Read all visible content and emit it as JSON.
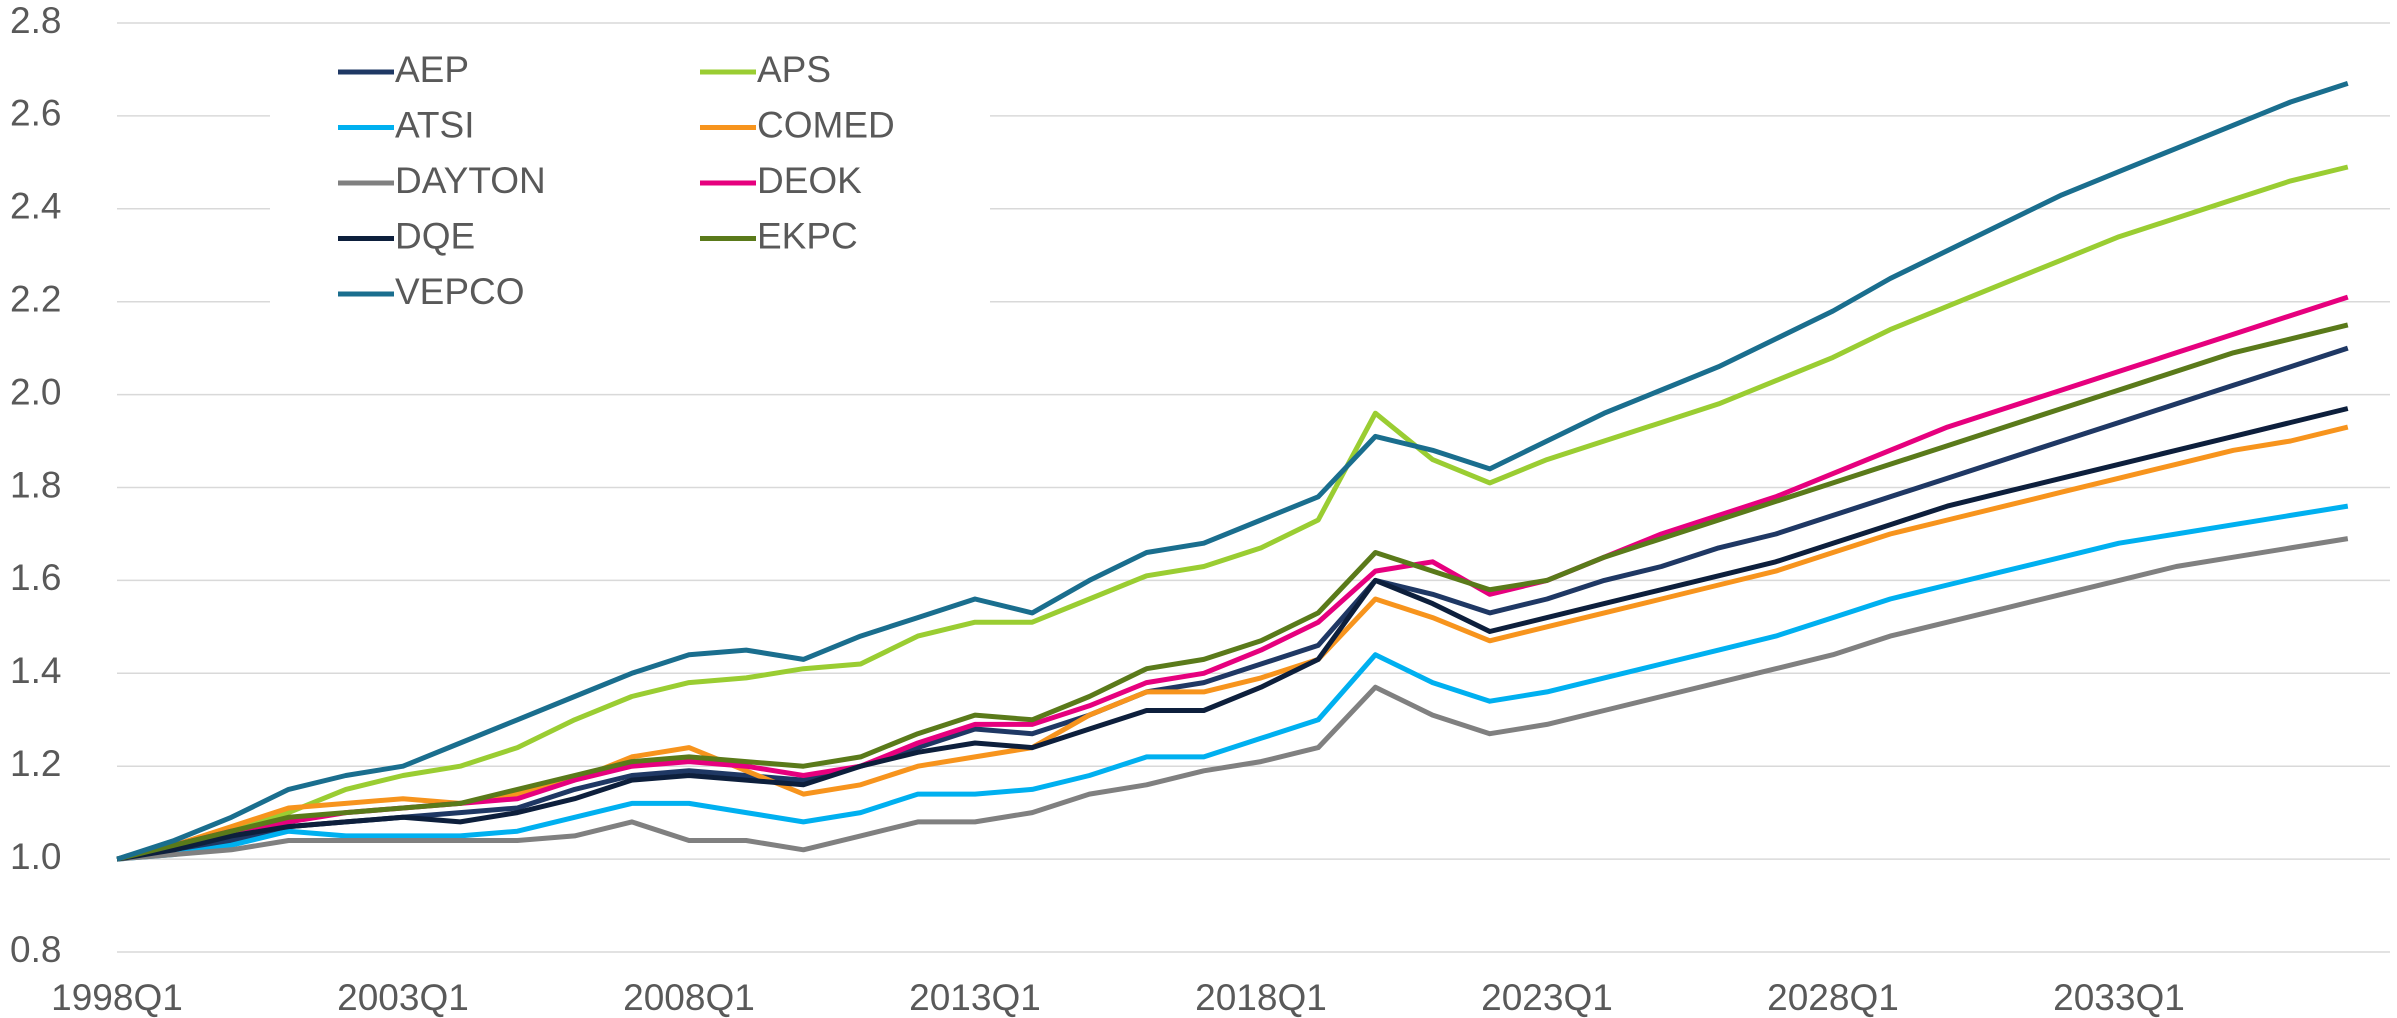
{
  "chart_data": {
    "type": "line",
    "categories": [
      "1998Q1",
      null,
      null,
      null,
      null,
      "2003Q1",
      null,
      null,
      null,
      null,
      "2008Q1",
      null,
      null,
      null,
      null,
      "2013Q1",
      null,
      null,
      null,
      null,
      "2018Q1",
      null,
      null,
      null,
      null,
      "2023Q1",
      null,
      null,
      null,
      null,
      "2028Q1",
      null,
      null,
      null,
      null,
      "2033Q1",
      null,
      null,
      null,
      null
    ],
    "ylim": [
      0.8,
      2.8
    ],
    "yticks": [
      {
        "value": 0.8,
        "label": "0.8"
      },
      {
        "value": 1.0,
        "label": "1.0"
      },
      {
        "value": 1.2,
        "label": "1.2"
      },
      {
        "value": 1.4,
        "label": "1.4"
      },
      {
        "value": 1.6,
        "label": "1.6"
      },
      {
        "value": 1.8,
        "label": "1.8"
      },
      {
        "value": 2.0,
        "label": "2.0"
      },
      {
        "value": 2.2,
        "label": "2.2"
      },
      {
        "value": 2.4,
        "label": "2.4"
      },
      {
        "value": 2.6,
        "label": "2.6"
      },
      {
        "value": 2.8,
        "label": "2.8"
      }
    ],
    "grid": true,
    "legend": "upper left",
    "series": [
      {
        "name": "AEP",
        "color": "#1f3864",
        "values": [
          1.0,
          1.02,
          1.04,
          1.07,
          1.08,
          1.09,
          1.1,
          1.11,
          1.15,
          1.18,
          1.19,
          1.18,
          1.17,
          1.2,
          1.24,
          1.28,
          1.27,
          1.31,
          1.36,
          1.38,
          1.42,
          1.46,
          1.6,
          1.57,
          1.53,
          1.56,
          1.6,
          1.63,
          1.67,
          1.7,
          1.74,
          1.78,
          1.82,
          1.86,
          1.9,
          1.94,
          1.98,
          2.02,
          2.06,
          2.1
        ]
      },
      {
        "name": "APS",
        "color": "#9acd32",
        "values": [
          1.0,
          1.03,
          1.06,
          1.1,
          1.15,
          1.18,
          1.2,
          1.24,
          1.3,
          1.35,
          1.38,
          1.39,
          1.41,
          1.42,
          1.48,
          1.51,
          1.51,
          1.56,
          1.61,
          1.63,
          1.67,
          1.73,
          1.96,
          1.86,
          1.81,
          1.86,
          1.9,
          1.94,
          1.98,
          2.03,
          2.08,
          2.14,
          2.19,
          2.24,
          2.29,
          2.34,
          2.38,
          2.42,
          2.46,
          2.49
        ]
      },
      {
        "name": "ATSI",
        "color": "#00b0f0",
        "values": [
          1.0,
          1.01,
          1.03,
          1.06,
          1.05,
          1.05,
          1.05,
          1.06,
          1.09,
          1.12,
          1.12,
          1.1,
          1.08,
          1.1,
          1.14,
          1.14,
          1.15,
          1.18,
          1.22,
          1.22,
          1.26,
          1.3,
          1.44,
          1.38,
          1.34,
          1.36,
          1.39,
          1.42,
          1.45,
          1.48,
          1.52,
          1.56,
          1.59,
          1.62,
          1.65,
          1.68,
          1.7,
          1.72,
          1.74,
          1.76
        ]
      },
      {
        "name": "COMED",
        "color": "#f7941d",
        "values": [
          1.0,
          1.03,
          1.07,
          1.11,
          1.12,
          1.13,
          1.12,
          1.14,
          1.17,
          1.22,
          1.24,
          1.19,
          1.14,
          1.16,
          1.2,
          1.22,
          1.24,
          1.31,
          1.36,
          1.36,
          1.39,
          1.43,
          1.56,
          1.52,
          1.47,
          1.5,
          1.53,
          1.56,
          1.59,
          1.62,
          1.66,
          1.7,
          1.73,
          1.76,
          1.79,
          1.82,
          1.85,
          1.88,
          1.9,
          1.93
        ]
      },
      {
        "name": "DAYTON",
        "color": "#808080",
        "values": [
          1.0,
          1.01,
          1.02,
          1.04,
          1.04,
          1.04,
          1.04,
          1.04,
          1.05,
          1.08,
          1.04,
          1.04,
          1.02,
          1.05,
          1.08,
          1.08,
          1.1,
          1.14,
          1.16,
          1.19,
          1.21,
          1.24,
          1.37,
          1.31,
          1.27,
          1.29,
          1.32,
          1.35,
          1.38,
          1.41,
          1.44,
          1.48,
          1.51,
          1.54,
          1.57,
          1.6,
          1.63,
          1.65,
          1.67,
          1.69
        ]
      },
      {
        "name": "DEOK",
        "color": "#e6007e",
        "values": [
          1.0,
          1.03,
          1.06,
          1.08,
          1.1,
          1.11,
          1.12,
          1.13,
          1.17,
          1.2,
          1.21,
          1.2,
          1.18,
          1.2,
          1.25,
          1.29,
          1.29,
          1.33,
          1.38,
          1.4,
          1.45,
          1.51,
          1.62,
          1.64,
          1.57,
          1.6,
          1.65,
          1.7,
          1.74,
          1.78,
          1.83,
          1.88,
          1.93,
          1.97,
          2.01,
          2.05,
          2.09,
          2.13,
          2.17,
          2.21
        ]
      },
      {
        "name": "DQE",
        "color": "#0d1f3c",
        "values": [
          1.0,
          1.02,
          1.05,
          1.07,
          1.08,
          1.09,
          1.08,
          1.1,
          1.13,
          1.17,
          1.18,
          1.17,
          1.16,
          1.2,
          1.23,
          1.25,
          1.24,
          1.28,
          1.32,
          1.32,
          1.37,
          1.43,
          1.6,
          1.55,
          1.49,
          1.52,
          1.55,
          1.58,
          1.61,
          1.64,
          1.68,
          1.72,
          1.76,
          1.79,
          1.82,
          1.85,
          1.88,
          1.91,
          1.94,
          1.97
        ]
      },
      {
        "name": "EKPC",
        "color": "#5a7a1a",
        "values": [
          1.0,
          1.03,
          1.06,
          1.09,
          1.1,
          1.11,
          1.12,
          1.15,
          1.18,
          1.21,
          1.22,
          1.21,
          1.2,
          1.22,
          1.27,
          1.31,
          1.3,
          1.35,
          1.41,
          1.43,
          1.47,
          1.53,
          1.66,
          1.62,
          1.58,
          1.6,
          1.65,
          1.69,
          1.73,
          1.77,
          1.81,
          1.85,
          1.89,
          1.93,
          1.97,
          2.01,
          2.05,
          2.09,
          2.12,
          2.15
        ]
      },
      {
        "name": "VEPCO",
        "color": "#1a6e8e",
        "values": [
          1.0,
          1.04,
          1.09,
          1.15,
          1.18,
          1.2,
          1.25,
          1.3,
          1.35,
          1.4,
          1.44,
          1.45,
          1.43,
          1.48,
          1.52,
          1.56,
          1.53,
          1.6,
          1.66,
          1.68,
          1.73,
          1.78,
          1.91,
          1.88,
          1.84,
          1.9,
          1.96,
          2.01,
          2.06,
          2.12,
          2.18,
          2.25,
          2.31,
          2.37,
          2.43,
          2.48,
          2.53,
          2.58,
          2.63,
          2.67
        ]
      }
    ]
  }
}
